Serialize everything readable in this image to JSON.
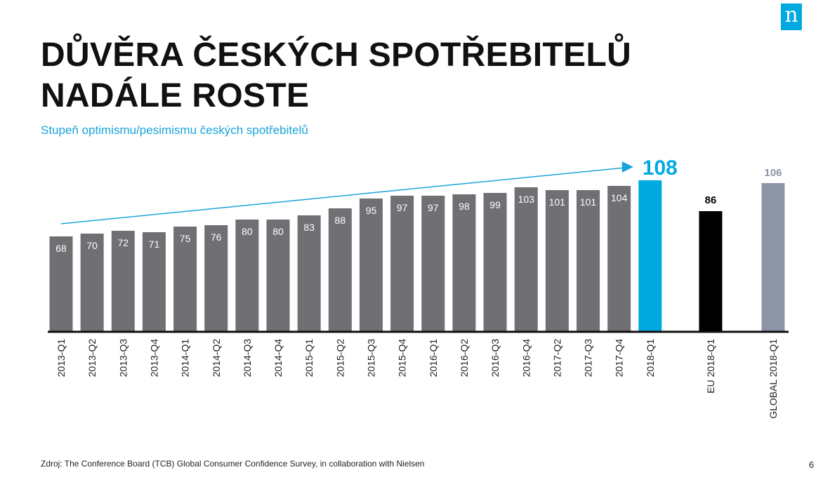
{
  "header": {
    "title_line1": "DŮVĚRA ČESKÝCH SPOTŘEBITELŮ",
    "title_line2": "NADÁLE ROSTE",
    "subtitle": "Stupeň optimismu/pesimismu českých spotřebitelů",
    "logo_letter": "n"
  },
  "footer": {
    "source": "Zdroj: The Conference Board (TCB) Global Consumer Confidence Survey, in collaboration with Nielsen",
    "page_number": "6"
  },
  "colors": {
    "brand": "#00a9e0",
    "bar_default": "#6f6f74",
    "bar_highlight": "#00a9e0",
    "bar_eu": "#000000",
    "bar_global": "#8d95a4",
    "trend_arrow": "#1aa3d9"
  },
  "chart_data": {
    "type": "bar",
    "categories": [
      "2013-Q1",
      "2013-Q2",
      "2013-Q3",
      "2013-Q4",
      "2014-Q1",
      "2014-Q2",
      "2014-Q3",
      "2014-Q4",
      "2015-Q1",
      "2015-Q2",
      "2015-Q3",
      "2015-Q4",
      "2016-Q1",
      "2016-Q2",
      "2016-Q3",
      "2016-Q4",
      "2017-Q2",
      "2017-Q3",
      "2017-Q4",
      "2018-Q1",
      "EU 2018-Q1",
      "GLOBAL 2018-Q1"
    ],
    "values": [
      68,
      70,
      72,
      71,
      75,
      76,
      80,
      80,
      83,
      88,
      95,
      97,
      97,
      98,
      99,
      103,
      101,
      101,
      104,
      108,
      86,
      106
    ],
    "title": "",
    "xlabel": "",
    "ylabel": "",
    "ylim": [
      0,
      110
    ],
    "grid": false,
    "legend": "none",
    "trend_arrow": {
      "from_category": "2013-Q1",
      "to_category": "2018-Q1"
    }
  }
}
